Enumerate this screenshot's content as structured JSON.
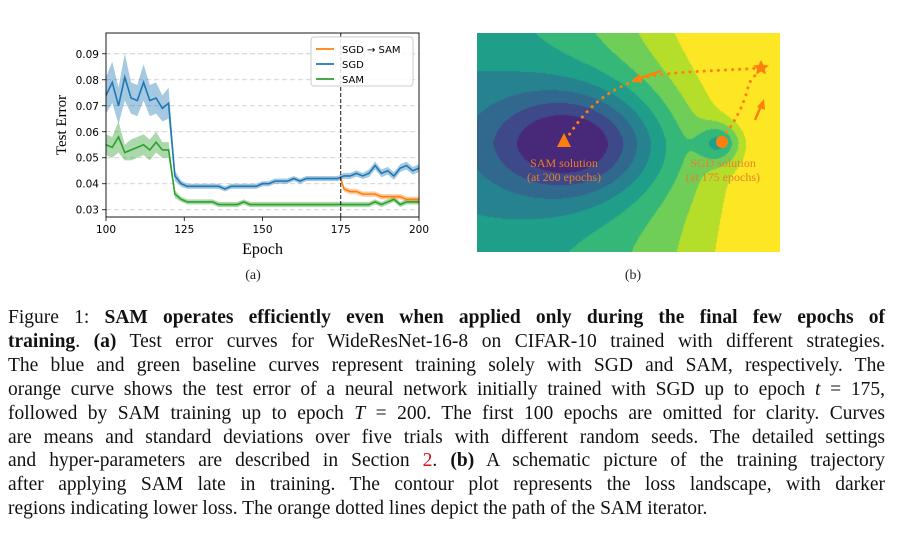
{
  "figure_a": {
    "panel_label": "(a)",
    "chart_data": {
      "type": "line",
      "xlabel": "Epoch",
      "ylabel": "Test Error",
      "xlim": [
        100,
        200
      ],
      "ylim": [
        0.0272,
        0.098
      ],
      "xticks": [
        100,
        125,
        150,
        175,
        200
      ],
      "yticks": [
        0.03,
        0.04,
        0.05,
        0.06,
        0.07,
        0.08,
        0.09
      ],
      "ytick_labels": [
        "0.03",
        "0.04",
        "0.05",
        "0.06",
        "0.07",
        "0.08",
        "0.09"
      ],
      "xtick_labels": [
        "100",
        "125",
        "150",
        "175",
        "200"
      ],
      "grid": "horizontal dashed",
      "vline": 175,
      "legend_position": "top-right",
      "series": [
        {
          "name": "SGD → SAM",
          "color": "#ff7f0e",
          "x": [
            175,
            176,
            178,
            180,
            182,
            184,
            186,
            188,
            190,
            192,
            194,
            196,
            198,
            200
          ],
          "y": [
            0.042,
            0.038,
            0.037,
            0.037,
            0.036,
            0.036,
            0.036,
            0.035,
            0.035,
            0.035,
            0.035,
            0.034,
            0.034,
            0.034
          ],
          "std": [
            0.001,
            0.001,
            0.001,
            0.001,
            0.001,
            0.001,
            0.001,
            0.001,
            0.001,
            0.001,
            0.001,
            0.001,
            0.001,
            0.001
          ]
        },
        {
          "name": "SGD",
          "color": "#1f77b4",
          "x": [
            100,
            102,
            104,
            106,
            108,
            110,
            112,
            114,
            116,
            118,
            120,
            122,
            124,
            126,
            128,
            130,
            132,
            134,
            136,
            138,
            140,
            142,
            144,
            146,
            148,
            150,
            152,
            154,
            156,
            158,
            160,
            162,
            164,
            166,
            168,
            170,
            172,
            174,
            176,
            178,
            180,
            182,
            184,
            186,
            188,
            190,
            192,
            194,
            196,
            198,
            200
          ],
          "y": [
            0.074,
            0.079,
            0.07,
            0.081,
            0.073,
            0.072,
            0.079,
            0.072,
            0.073,
            0.069,
            0.071,
            0.043,
            0.04,
            0.039,
            0.039,
            0.039,
            0.039,
            0.039,
            0.039,
            0.038,
            0.039,
            0.039,
            0.039,
            0.039,
            0.039,
            0.04,
            0.04,
            0.041,
            0.041,
            0.041,
            0.042,
            0.041,
            0.042,
            0.042,
            0.042,
            0.042,
            0.042,
            0.042,
            0.043,
            0.043,
            0.044,
            0.043,
            0.044,
            0.047,
            0.044,
            0.045,
            0.043,
            0.046,
            0.047,
            0.045,
            0.046
          ],
          "std": [
            0.007,
            0.008,
            0.007,
            0.009,
            0.006,
            0.006,
            0.007,
            0.006,
            0.006,
            0.005,
            0.006,
            0.002,
            0.0012,
            0.001,
            0.001,
            0.001,
            0.001,
            0.001,
            0.001,
            0.001,
            0.001,
            0.001,
            0.001,
            0.001,
            0.001,
            0.001,
            0.001,
            0.001,
            0.001,
            0.001,
            0.001,
            0.001,
            0.001,
            0.001,
            0.001,
            0.001,
            0.001,
            0.001,
            0.0012,
            0.0012,
            0.0012,
            0.0012,
            0.0015,
            0.0015,
            0.0015,
            0.0015,
            0.0015,
            0.0015,
            0.0015,
            0.0015,
            0.0015
          ]
        },
        {
          "name": "SAM",
          "color": "#2ca02c",
          "x": [
            100,
            102,
            104,
            106,
            108,
            110,
            112,
            114,
            116,
            118,
            120,
            122,
            124,
            126,
            128,
            130,
            132,
            134,
            136,
            138,
            140,
            142,
            144,
            146,
            148,
            150,
            152,
            154,
            156,
            158,
            160,
            162,
            164,
            166,
            168,
            170,
            172,
            174,
            176,
            178,
            180,
            182,
            184,
            186,
            188,
            190,
            192,
            194,
            196,
            198,
            200
          ],
          "y": [
            0.055,
            0.054,
            0.058,
            0.052,
            0.053,
            0.054,
            0.055,
            0.053,
            0.056,
            0.053,
            0.053,
            0.036,
            0.034,
            0.033,
            0.033,
            0.033,
            0.033,
            0.033,
            0.032,
            0.032,
            0.032,
            0.032,
            0.033,
            0.032,
            0.032,
            0.032,
            0.032,
            0.032,
            0.032,
            0.032,
            0.032,
            0.032,
            0.032,
            0.032,
            0.032,
            0.032,
            0.032,
            0.032,
            0.032,
            0.032,
            0.032,
            0.032,
            0.032,
            0.033,
            0.032,
            0.033,
            0.034,
            0.032,
            0.033,
            0.033,
            0.033
          ],
          "std": [
            0.004,
            0.004,
            0.006,
            0.003,
            0.004,
            0.004,
            0.004,
            0.004,
            0.004,
            0.003,
            0.003,
            0.0015,
            0.001,
            0.001,
            0.001,
            0.001,
            0.001,
            0.001,
            0.001,
            0.001,
            0.001,
            0.001,
            0.001,
            0.001,
            0.001,
            0.001,
            0.001,
            0.001,
            0.001,
            0.001,
            0.001,
            0.001,
            0.001,
            0.001,
            0.001,
            0.001,
            0.001,
            0.001,
            0.001,
            0.001,
            0.001,
            0.001,
            0.001,
            0.001,
            0.001,
            0.001,
            0.001,
            0.001,
            0.001,
            0.001,
            0.001
          ]
        }
      ]
    }
  },
  "figure_b": {
    "panel_label": "(b)",
    "colormap": "viridis",
    "path_color": "#ff7f0e",
    "sam_label": [
      "SAM solution",
      "(at 200 epochs)"
    ],
    "sgd_label": [
      "SGD solution",
      "(at 175 epochs)"
    ],
    "markers": {
      "sam_solution": "triangle",
      "sgd_solution": "circle",
      "peak": "star"
    }
  },
  "caption": {
    "lines": [
      [
        {
          "t": "Figure 1: ",
          "s": "n"
        },
        {
          "t": "SAM operates efficiently even when applied only during the final few epochs of",
          "s": "b"
        }
      ],
      [
        {
          "t": "training",
          "s": "b"
        },
        {
          "t": ". ",
          "s": "n"
        },
        {
          "t": "(a)",
          "s": "b"
        },
        {
          "t": " Test error curves for WideResNet-16-8 on CIFAR-10 trained with different strategies.",
          "s": "n"
        }
      ],
      [
        {
          "t": "The blue and green baseline curves represent training solely with SGD and SAM, respectively. The",
          "s": "n"
        }
      ],
      [
        {
          "t": "orange curve shows the test error of a neural network initially trained with SGD up to epoch ",
          "s": "n"
        },
        {
          "t": "t",
          "s": "i"
        },
        {
          "t": " = 175,",
          "s": "n"
        }
      ],
      [
        {
          "t": "followed by SAM training up to epoch ",
          "s": "n"
        },
        {
          "t": "T",
          "s": "i"
        },
        {
          "t": " = 200. The first 100 epochs are omitted for clarity. Curves",
          "s": "n"
        }
      ],
      [
        {
          "t": "are means and standard deviations over five trials with different random seeds. The detailed settings",
          "s": "n"
        }
      ],
      [
        {
          "t": "and hyper-parameters are described in Section ",
          "s": "n"
        },
        {
          "t": "2",
          "s": "r"
        },
        {
          "t": ". ",
          "s": "n"
        },
        {
          "t": "(b)",
          "s": "b"
        },
        {
          "t": " A schematic picture of the training trajectory",
          "s": "n"
        }
      ],
      [
        {
          "t": "after applying SAM late in training.  The contour plot represents the loss landscape, with darker",
          "s": "n"
        }
      ],
      [
        {
          "t": "regions indicating lower loss. The orange dotted lines depict the path of the SAM iterator.",
          "s": "n"
        }
      ]
    ]
  }
}
